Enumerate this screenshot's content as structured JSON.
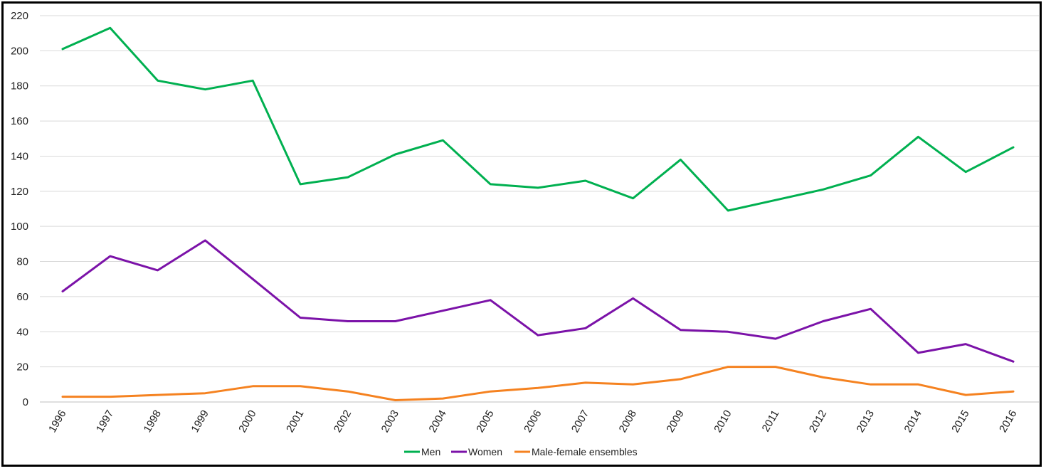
{
  "chart_data": {
    "type": "line",
    "title": "",
    "xlabel": "",
    "ylabel": "",
    "categories": [
      "1996",
      "1997",
      "1998",
      "1999",
      "2000",
      "2001",
      "2002",
      "2003",
      "2004",
      "2005",
      "2006",
      "2007",
      "2008",
      "2009",
      "2010",
      "2011",
      "2012",
      "2013",
      "2014",
      "2015",
      "2016"
    ],
    "ylim": [
      0,
      220
    ],
    "yticks": [
      0,
      20,
      40,
      60,
      80,
      100,
      120,
      140,
      160,
      180,
      200,
      220
    ],
    "grid": true,
    "legend_position": "bottom",
    "series": [
      {
        "name": "Men",
        "color": "#00b050",
        "values": [
          201,
          213,
          183,
          178,
          183,
          124,
          128,
          141,
          149,
          124,
          122,
          126,
          116,
          138,
          109,
          115,
          121,
          129,
          151,
          131,
          145
        ]
      },
      {
        "name": "Women",
        "color": "#7b12a8",
        "values": [
          63,
          83,
          75,
          92,
          70,
          48,
          46,
          46,
          52,
          58,
          38,
          42,
          59,
          41,
          40,
          36,
          46,
          53,
          28,
          33,
          23
        ]
      },
      {
        "name": "Male-female ensembles",
        "color": "#f58220",
        "values": [
          3,
          3,
          4,
          5,
          9,
          9,
          6,
          1,
          2,
          6,
          8,
          11,
          10,
          13,
          20,
          20,
          14,
          10,
          10,
          4,
          6
        ]
      }
    ]
  }
}
